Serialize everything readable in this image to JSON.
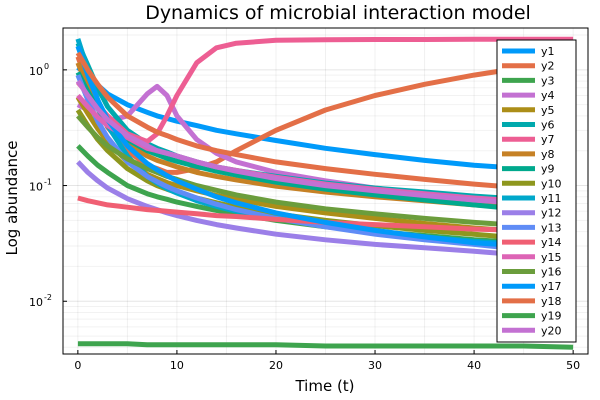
{
  "chart_data": {
    "type": "line",
    "title": "Dynamics of microbial interaction model",
    "xlabel": "Time (t)",
    "ylabel": "Log abundance",
    "x": [
      0,
      1,
      2,
      3,
      5,
      7,
      8,
      9,
      10,
      12,
      14,
      16,
      20,
      25,
      30,
      35,
      40,
      45,
      50
    ],
    "xlim": [
      -1.5,
      51.5
    ],
    "ylim": [
      0.0035,
      2.3
    ],
    "yscale": "log",
    "grid": true,
    "xticks": [
      0,
      10,
      20,
      30,
      40,
      50
    ],
    "xtick_labels": [
      "0",
      "10",
      "20",
      "30",
      "40",
      "50"
    ],
    "yticks": [
      0.01,
      0.1,
      1
    ],
    "ytick_labels": [
      "10",
      "10",
      "10"
    ],
    "ytick_exponents": [
      "-2",
      "-1",
      "0"
    ],
    "legend_position": "right",
    "series": [
      {
        "name": "y1",
        "color": "#009AFA",
        "values": [
          1.05,
          0.88,
          0.74,
          0.62,
          0.5,
          0.43,
          0.4,
          0.38,
          0.36,
          0.33,
          0.3,
          0.28,
          0.245,
          0.21,
          0.185,
          0.165,
          0.15,
          0.14,
          0.13
        ]
      },
      {
        "name": "y2",
        "color": "#E36F47",
        "values": [
          1.3,
          0.75,
          0.47,
          0.32,
          0.2,
          0.15,
          0.14,
          0.13,
          0.13,
          0.14,
          0.16,
          0.2,
          0.3,
          0.45,
          0.6,
          0.75,
          0.9,
          1.05,
          1.15
        ]
      },
      {
        "name": "y3",
        "color": "#3EA44E",
        "values": [
          0.22,
          0.18,
          0.15,
          0.13,
          0.1,
          0.085,
          0.08,
          0.076,
          0.072,
          0.066,
          0.061,
          0.057,
          0.05,
          0.044,
          0.04,
          0.037,
          0.034,
          0.032,
          0.03
        ]
      },
      {
        "name": "y4",
        "color": "#C371D2",
        "values": [
          0.5,
          0.45,
          0.4,
          0.36,
          0.4,
          0.62,
          0.72,
          0.6,
          0.4,
          0.25,
          0.19,
          0.16,
          0.13,
          0.11,
          0.095,
          0.085,
          0.077,
          0.071,
          0.066
        ]
      },
      {
        "name": "y5",
        "color": "#AC8E18",
        "values": [
          0.58,
          0.42,
          0.31,
          0.24,
          0.16,
          0.125,
          0.115,
          0.106,
          0.1,
          0.09,
          0.082,
          0.076,
          0.066,
          0.058,
          0.052,
          0.047,
          0.043,
          0.04,
          0.037
        ]
      },
      {
        "name": "y6",
        "color": "#00A9AD",
        "values": [
          1.7,
          1.1,
          0.7,
          0.48,
          0.3,
          0.23,
          0.21,
          0.195,
          0.18,
          0.16,
          0.145,
          0.135,
          0.12,
          0.105,
          0.095,
          0.088,
          0.081,
          0.076,
          0.072
        ]
      },
      {
        "name": "y7",
        "color": "#ED5E93",
        "values": [
          0.78,
          0.62,
          0.5,
          0.4,
          0.28,
          0.24,
          0.28,
          0.4,
          0.6,
          1.15,
          1.55,
          1.7,
          1.8,
          1.82,
          1.83,
          1.83,
          1.84,
          1.84,
          1.84
        ]
      },
      {
        "name": "y8",
        "color": "#C68125",
        "values": [
          1.15,
          0.7,
          0.47,
          0.34,
          0.23,
          0.18,
          0.165,
          0.155,
          0.145,
          0.13,
          0.12,
          0.112,
          0.099,
          0.088,
          0.08,
          0.074,
          0.068,
          0.064,
          0.06
        ]
      },
      {
        "name": "y9",
        "color": "#00A98D",
        "values": [
          0.95,
          0.65,
          0.46,
          0.35,
          0.25,
          0.2,
          0.185,
          0.172,
          0.162,
          0.146,
          0.133,
          0.123,
          0.107,
          0.093,
          0.083,
          0.075,
          0.068,
          0.062,
          0.057
        ]
      },
      {
        "name": "y10",
        "color": "#8E971E",
        "values": [
          0.45,
          0.33,
          0.25,
          0.2,
          0.14,
          0.11,
          0.1,
          0.093,
          0.087,
          0.078,
          0.071,
          0.065,
          0.057,
          0.05,
          0.045,
          0.041,
          0.038,
          0.035,
          0.033
        ]
      },
      {
        "name": "y11",
        "color": "#00A8CB",
        "values": [
          1.85,
          1.0,
          0.55,
          0.33,
          0.18,
          0.12,
          0.105,
          0.094,
          0.086,
          0.074,
          0.066,
          0.06,
          0.052,
          0.045,
          0.04,
          0.036,
          0.033,
          0.031,
          0.029
        ]
      },
      {
        "name": "y12",
        "color": "#9B7FE8",
        "values": [
          0.16,
          0.13,
          0.11,
          0.095,
          0.077,
          0.066,
          0.062,
          0.058,
          0.055,
          0.05,
          0.046,
          0.043,
          0.038,
          0.034,
          0.031,
          0.029,
          0.027,
          0.025,
          0.024
        ]
      },
      {
        "name": "y13",
        "color": "#608CF6",
        "values": [
          0.9,
          0.55,
          0.36,
          0.26,
          0.16,
          0.12,
          0.108,
          0.098,
          0.09,
          0.078,
          0.069,
          0.062,
          0.052,
          0.044,
          0.038,
          0.034,
          0.031,
          0.028,
          0.026
        ]
      },
      {
        "name": "y14",
        "color": "#F05F73",
        "values": [
          0.078,
          0.074,
          0.071,
          0.068,
          0.065,
          0.062,
          0.061,
          0.06,
          0.059,
          0.057,
          0.055,
          0.054,
          0.051,
          0.048,
          0.046,
          0.044,
          0.042,
          0.041,
          0.04
        ]
      },
      {
        "name": "y15",
        "color": "#DD64B5",
        "values": [
          0.6,
          0.48,
          0.39,
          0.33,
          0.26,
          0.21,
          0.2,
          0.19,
          0.18,
          0.16,
          0.145,
          0.135,
          0.118,
          0.103,
          0.093,
          0.085,
          0.078,
          0.073,
          0.068
        ]
      },
      {
        "name": "y16",
        "color": "#6B9D3C",
        "values": [
          0.4,
          0.32,
          0.26,
          0.22,
          0.17,
          0.14,
          0.13,
          0.12,
          0.113,
          0.1,
          0.091,
          0.083,
          0.072,
          0.063,
          0.057,
          0.052,
          0.048,
          0.045,
          0.042
        ]
      },
      {
        "name": "y17",
        "color": "#009AFA",
        "values": [
          1.6,
          0.9,
          0.55,
          0.37,
          0.22,
          0.155,
          0.137,
          0.122,
          0.11,
          0.093,
          0.08,
          0.071,
          0.058,
          0.048,
          0.041,
          0.036,
          0.032,
          0.03,
          0.028
        ]
      },
      {
        "name": "y18",
        "color": "#E36F47",
        "values": [
          1.4,
          1.0,
          0.75,
          0.58,
          0.4,
          0.32,
          0.29,
          0.27,
          0.25,
          0.22,
          0.2,
          0.185,
          0.16,
          0.14,
          0.125,
          0.113,
          0.103,
          0.095,
          0.088
        ]
      },
      {
        "name": "y19",
        "color": "#3EA44E",
        "values": [
          0.0043,
          0.0043,
          0.0043,
          0.0043,
          0.0043,
          0.0042,
          0.0042,
          0.0042,
          0.0042,
          0.0042,
          0.0042,
          0.0042,
          0.0042,
          0.0041,
          0.0041,
          0.0041,
          0.0041,
          0.0041,
          0.004
        ]
      },
      {
        "name": "y20",
        "color": "#C371D2",
        "values": [
          0.8,
          0.6,
          0.46,
          0.37,
          0.27,
          0.22,
          0.2,
          0.19,
          0.18,
          0.16,
          0.145,
          0.133,
          0.115,
          0.1,
          0.09,
          0.082,
          0.075,
          0.07,
          0.065
        ]
      }
    ]
  }
}
